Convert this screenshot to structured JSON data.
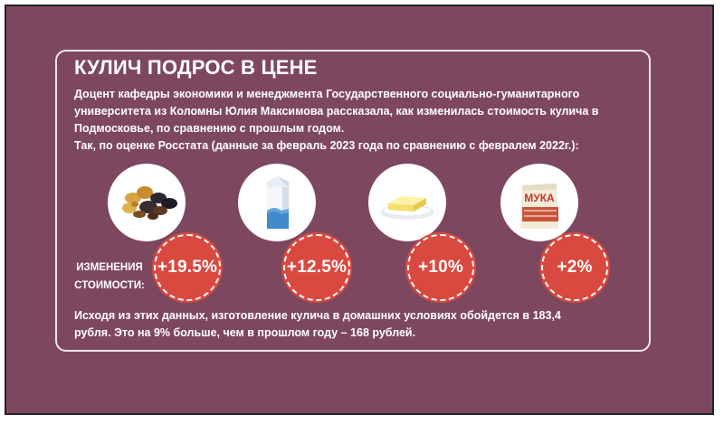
{
  "title": "КУЛИЧ ПОДРОС В ЦЕНЕ",
  "intro_lines": [
    "Доцент кафедры экономики и менеджмента Государственного социально-гуманитарного",
    "университета из Коломны Юлия Максимова рассказала, как изменилась стоимость кулича в",
    "Подмосковье, по сравнению с прошлым годом.",
    "Так, по оценке Росстата (данные за февраль 2023 года по сравнению с февралем 2022г.):"
  ],
  "change_label_lines": [
    "ИЗМЕНЕНИЯ",
    "СТОИМОСТИ:"
  ],
  "items": [
    {
      "icon": "dried-fruits-icon",
      "change": "+19.5%",
      "value_percent": 19.5
    },
    {
      "icon": "milk-carton-icon",
      "change": "+12.5%",
      "value_percent": 12.5
    },
    {
      "icon": "butter-icon",
      "change": "+10%",
      "value_percent": 10
    },
    {
      "icon": "flour-bag-icon",
      "change": "+2%",
      "value_percent": 2
    }
  ],
  "flour_bag_label": "МУКА",
  "outro_lines": [
    "Исходя из этих данных, изготовление кулича в домашних условиях обойдется в 183,4",
    "рубля. Это на 9% больше, чем в прошлом году – 168 рублей."
  ],
  "colors": {
    "background": "#7e4760",
    "badge": "#d9493f",
    "text": "#ffffff"
  }
}
